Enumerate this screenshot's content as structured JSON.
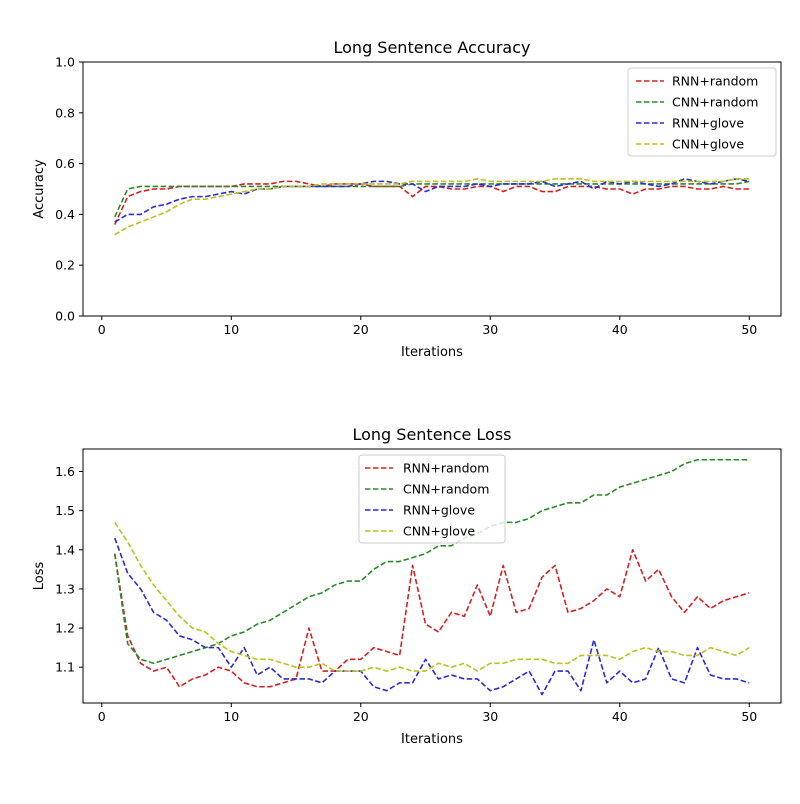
{
  "chart_data": [
    {
      "type": "line",
      "title": "Long Sentence Accuracy",
      "xlabel": "Iterations",
      "ylabel": "Accuracy",
      "xlim": [
        -1.45,
        52.45
      ],
      "ylim": [
        0.0,
        1.0
      ],
      "xticks": [
        0,
        10,
        20,
        30,
        40,
        50
      ],
      "yticks": [
        0.0,
        0.2,
        0.4,
        0.6,
        0.8,
        1.0
      ],
      "xtick_labels": [
        "0",
        "10",
        "20",
        "30",
        "40",
        "50"
      ],
      "ytick_labels": [
        "0.0",
        "0.2",
        "0.4",
        "0.6",
        "0.8",
        "1.0"
      ],
      "legend_loc": "upper right",
      "x": [
        1,
        2,
        3,
        4,
        5,
        6,
        7,
        8,
        9,
        10,
        11,
        12,
        13,
        14,
        15,
        16,
        17,
        18,
        19,
        20,
        21,
        22,
        23,
        24,
        25,
        26,
        27,
        28,
        29,
        30,
        31,
        32,
        33,
        34,
        35,
        36,
        37,
        38,
        39,
        40,
        41,
        42,
        43,
        44,
        45,
        46,
        47,
        48,
        49,
        50
      ],
      "series": [
        {
          "name": "RNN+random",
          "color": "#d62020",
          "values": [
            0.36,
            0.47,
            0.49,
            0.5,
            0.5,
            0.51,
            0.51,
            0.51,
            0.51,
            0.51,
            0.52,
            0.52,
            0.52,
            0.53,
            0.53,
            0.52,
            0.51,
            0.52,
            0.52,
            0.52,
            0.51,
            0.51,
            0.51,
            0.47,
            0.51,
            0.51,
            0.5,
            0.5,
            0.51,
            0.51,
            0.49,
            0.51,
            0.51,
            0.49,
            0.49,
            0.51,
            0.51,
            0.51,
            0.5,
            0.5,
            0.48,
            0.5,
            0.5,
            0.51,
            0.51,
            0.5,
            0.5,
            0.51,
            0.5,
            0.5
          ]
        },
        {
          "name": "CNN+random",
          "color": "#2a8a2a",
          "values": [
            0.39,
            0.5,
            0.51,
            0.51,
            0.51,
            0.51,
            0.51,
            0.51,
            0.51,
            0.51,
            0.51,
            0.51,
            0.51,
            0.51,
            0.51,
            0.51,
            0.51,
            0.51,
            0.51,
            0.51,
            0.51,
            0.51,
            0.51,
            0.52,
            0.52,
            0.52,
            0.52,
            0.52,
            0.52,
            0.52,
            0.52,
            0.52,
            0.52,
            0.52,
            0.52,
            0.52,
            0.52,
            0.52,
            0.52,
            0.52,
            0.52,
            0.52,
            0.52,
            0.52,
            0.52,
            0.52,
            0.52,
            0.52,
            0.52,
            0.53
          ]
        },
        {
          "name": "RNN+glove",
          "color": "#2a2ad6",
          "values": [
            0.37,
            0.4,
            0.4,
            0.43,
            0.44,
            0.46,
            0.47,
            0.47,
            0.48,
            0.49,
            0.48,
            0.5,
            0.5,
            0.51,
            0.51,
            0.51,
            0.51,
            0.51,
            0.51,
            0.52,
            0.53,
            0.53,
            0.52,
            0.52,
            0.49,
            0.51,
            0.51,
            0.51,
            0.52,
            0.51,
            0.52,
            0.52,
            0.52,
            0.53,
            0.51,
            0.52,
            0.53,
            0.5,
            0.53,
            0.52,
            0.53,
            0.52,
            0.51,
            0.52,
            0.54,
            0.53,
            0.52,
            0.53,
            0.54,
            0.53
          ]
        },
        {
          "name": "CNN+glove",
          "color": "#bfbf1f",
          "values": [
            0.32,
            0.35,
            0.37,
            0.39,
            0.41,
            0.44,
            0.46,
            0.46,
            0.47,
            0.48,
            0.49,
            0.5,
            0.5,
            0.51,
            0.51,
            0.51,
            0.52,
            0.52,
            0.52,
            0.52,
            0.52,
            0.52,
            0.52,
            0.53,
            0.53,
            0.53,
            0.53,
            0.53,
            0.54,
            0.53,
            0.53,
            0.53,
            0.53,
            0.53,
            0.54,
            0.54,
            0.54,
            0.53,
            0.53,
            0.53,
            0.53,
            0.53,
            0.53,
            0.53,
            0.53,
            0.53,
            0.53,
            0.53,
            0.54,
            0.54
          ]
        }
      ]
    },
    {
      "type": "line",
      "title": "Long Sentence Loss",
      "xlabel": "Iterations",
      "ylabel": "Loss",
      "xlim": [
        -1.45,
        52.45
      ],
      "ylim": [
        1.0085,
        1.6575
      ],
      "xticks": [
        0,
        10,
        20,
        30,
        40,
        50
      ],
      "yticks": [
        1.1,
        1.2,
        1.3,
        1.4,
        1.5,
        1.6
      ],
      "xtick_labels": [
        "0",
        "10",
        "20",
        "30",
        "40",
        "50"
      ],
      "ytick_labels": [
        "1.1",
        "1.2",
        "1.3",
        "1.4",
        "1.5",
        "1.6"
      ],
      "legend_loc": "upper center",
      "x": [
        1,
        2,
        3,
        4,
        5,
        6,
        7,
        8,
        9,
        10,
        11,
        12,
        13,
        14,
        15,
        16,
        17,
        18,
        19,
        20,
        21,
        22,
        23,
        24,
        25,
        26,
        27,
        28,
        29,
        30,
        31,
        32,
        33,
        34,
        35,
        36,
        37,
        38,
        39,
        40,
        41,
        42,
        43,
        44,
        45,
        46,
        47,
        48,
        49,
        50
      ],
      "series": [
        {
          "name": "RNN+random",
          "color": "#d62020",
          "values": [
            1.39,
            1.18,
            1.11,
            1.09,
            1.1,
            1.05,
            1.07,
            1.08,
            1.1,
            1.09,
            1.06,
            1.05,
            1.05,
            1.06,
            1.07,
            1.2,
            1.09,
            1.09,
            1.12,
            1.12,
            1.15,
            1.14,
            1.13,
            1.36,
            1.21,
            1.19,
            1.24,
            1.23,
            1.31,
            1.23,
            1.36,
            1.24,
            1.25,
            1.33,
            1.36,
            1.24,
            1.25,
            1.27,
            1.3,
            1.28,
            1.4,
            1.32,
            1.35,
            1.28,
            1.24,
            1.28,
            1.25,
            1.27,
            1.28,
            1.29
          ]
        },
        {
          "name": "CNN+random",
          "color": "#2a8a2a",
          "values": [
            1.39,
            1.16,
            1.12,
            1.11,
            1.12,
            1.13,
            1.14,
            1.15,
            1.16,
            1.18,
            1.19,
            1.21,
            1.22,
            1.24,
            1.26,
            1.28,
            1.29,
            1.31,
            1.32,
            1.32,
            1.35,
            1.37,
            1.37,
            1.38,
            1.39,
            1.41,
            1.41,
            1.43,
            1.44,
            1.46,
            1.47,
            1.47,
            1.48,
            1.5,
            1.51,
            1.52,
            1.52,
            1.54,
            1.54,
            1.56,
            1.57,
            1.58,
            1.59,
            1.6,
            1.62,
            1.63,
            1.63,
            1.63,
            1.63,
            1.63
          ]
        },
        {
          "name": "RNN+glove",
          "color": "#2a2ad6",
          "values": [
            1.43,
            1.34,
            1.3,
            1.24,
            1.22,
            1.18,
            1.17,
            1.15,
            1.15,
            1.1,
            1.15,
            1.08,
            1.1,
            1.07,
            1.07,
            1.07,
            1.06,
            1.09,
            1.09,
            1.09,
            1.05,
            1.04,
            1.06,
            1.06,
            1.12,
            1.07,
            1.08,
            1.07,
            1.07,
            1.04,
            1.05,
            1.07,
            1.09,
            1.03,
            1.09,
            1.09,
            1.04,
            1.17,
            1.06,
            1.09,
            1.06,
            1.07,
            1.15,
            1.07,
            1.06,
            1.15,
            1.08,
            1.07,
            1.07,
            1.06
          ]
        },
        {
          "name": "CNN+glove",
          "color": "#bfbf1f",
          "values": [
            1.47,
            1.42,
            1.36,
            1.31,
            1.27,
            1.23,
            1.2,
            1.19,
            1.16,
            1.14,
            1.13,
            1.12,
            1.12,
            1.11,
            1.1,
            1.1,
            1.11,
            1.09,
            1.09,
            1.09,
            1.1,
            1.09,
            1.1,
            1.09,
            1.09,
            1.11,
            1.1,
            1.11,
            1.09,
            1.11,
            1.11,
            1.12,
            1.12,
            1.12,
            1.11,
            1.11,
            1.13,
            1.13,
            1.13,
            1.12,
            1.14,
            1.15,
            1.14,
            1.14,
            1.13,
            1.13,
            1.15,
            1.14,
            1.13,
            1.15
          ]
        }
      ]
    }
  ]
}
